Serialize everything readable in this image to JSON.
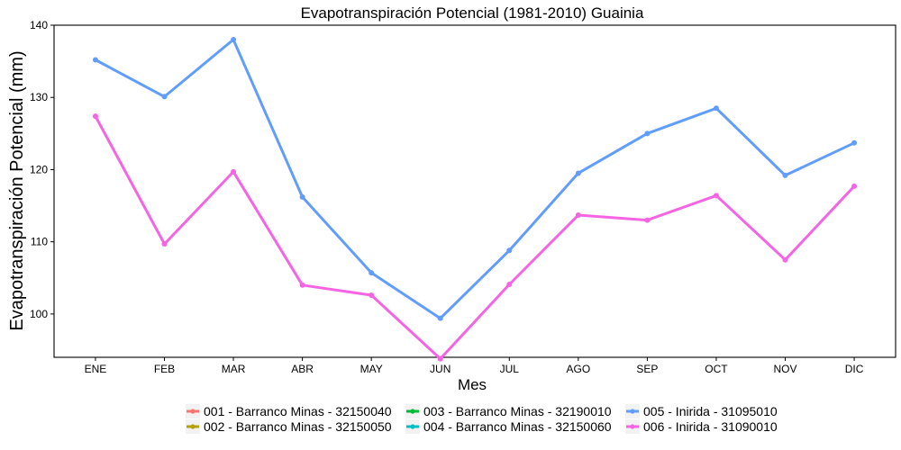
{
  "chart_data": {
    "type": "line",
    "title": "Evapotranspiración Potencial (1981-2010)  Guainia",
    "xlabel": "Mes",
    "ylabel": "Evapotranspiración Potencial  (mm)",
    "categories": [
      "ENE",
      "FEB",
      "MAR",
      "ABR",
      "MAY",
      "JUN",
      "JUL",
      "AGO",
      "SEP",
      "OCT",
      "NOV",
      "DIC"
    ],
    "ylim": [
      94,
      140
    ],
    "yticks": [
      100,
      110,
      120,
      130,
      140
    ],
    "grid": false,
    "legend_position": "bottom",
    "legend": [
      {
        "name": "001 - Barranco Minas - 32150040",
        "color": "#F8766D"
      },
      {
        "name": "002 - Barranco Minas - 32150050",
        "color": "#B79F00"
      },
      {
        "name": "003 - Barranco Minas - 32190010",
        "color": "#00BA38"
      },
      {
        "name": "004 - Barranco Minas - 32150060",
        "color": "#00BFC4"
      },
      {
        "name": "005 - Inirida - 31095010",
        "color": "#619CFF"
      },
      {
        "name": "006 - Inirida - 31090010",
        "color": "#F564E3"
      }
    ],
    "series": [
      {
        "name": "005 - Inirida - 31095010",
        "color": "#619CFF",
        "values": [
          135.2,
          130.1,
          138.0,
          116.2,
          105.7,
          99.4,
          108.8,
          119.5,
          125.0,
          128.5,
          119.2,
          123.7
        ]
      },
      {
        "name": "006 - Inirida - 31090010",
        "color": "#F564E3",
        "values": [
          127.4,
          109.7,
          119.7,
          104.0,
          102.6,
          93.8,
          104.1,
          113.7,
          113.0,
          116.4,
          107.5,
          117.7
        ]
      }
    ]
  }
}
